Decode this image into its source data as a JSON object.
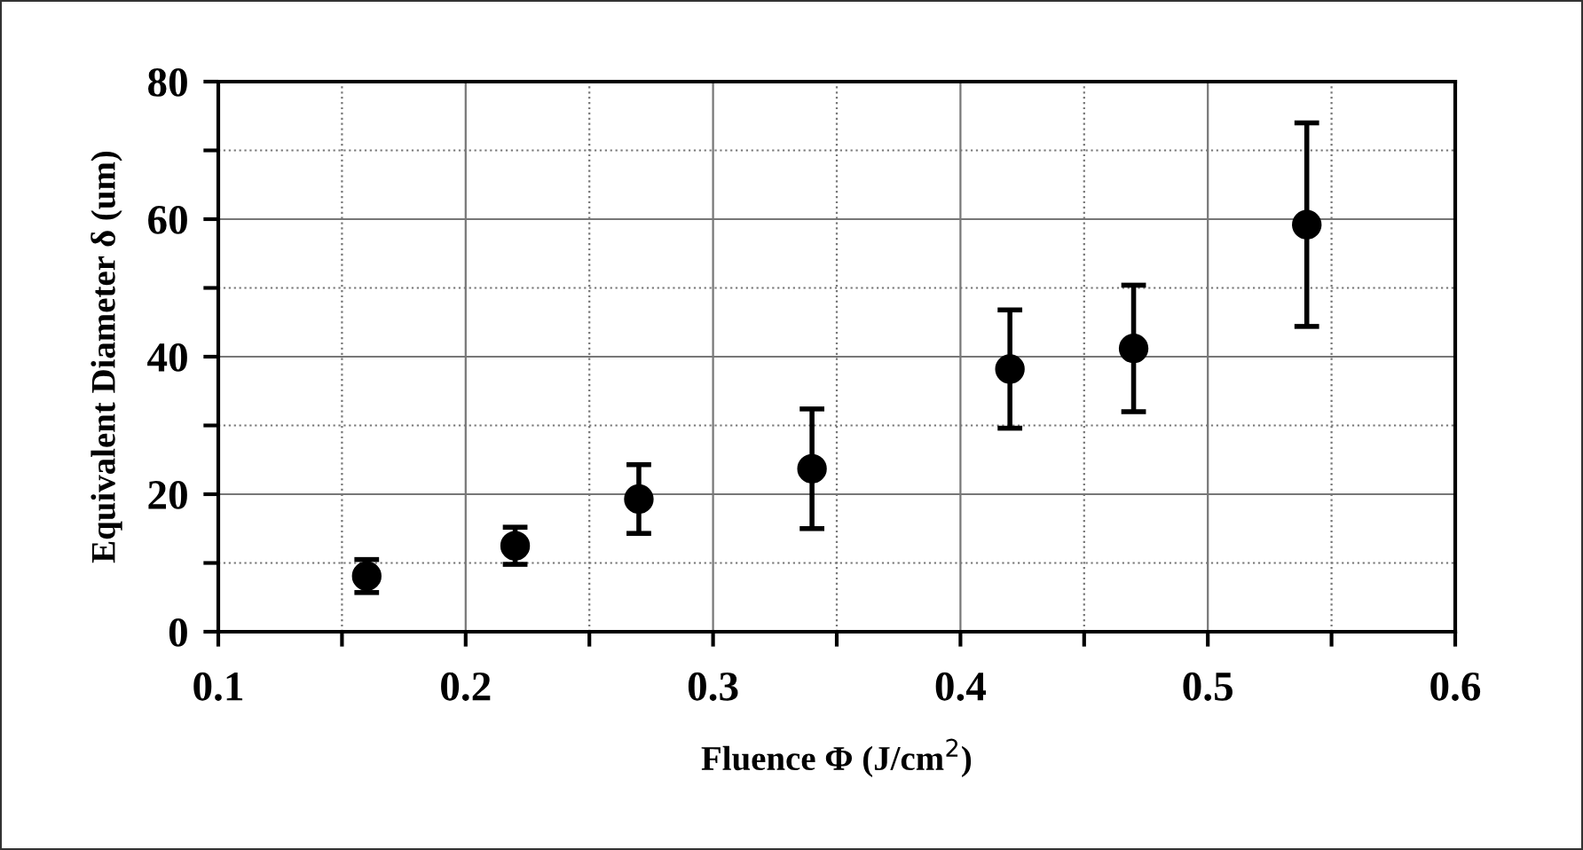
{
  "chart_data": {
    "type": "scatter",
    "xlabel": "Fluence Φ (J/cm$^{2}$)",
    "ylabel": "Equivalent Diameter δ (um)",
    "x": [
      0.16,
      0.22,
      0.27,
      0.34,
      0.42,
      0.47,
      0.54
    ],
    "values": [
      8.1,
      12.5,
      19.3,
      23.7,
      38.2,
      41.2,
      59.2
    ],
    "errors": [
      2.4,
      2.7,
      5.0,
      8.7,
      8.6,
      9.2,
      14.8
    ],
    "color": "#000000",
    "marker": "circle",
    "xlim": [
      0.1,
      0.6
    ],
    "ylim": [
      0,
      80
    ],
    "xticks": [
      0.1,
      {
        "value": 0.15,
        "label": null
      },
      0.2,
      {
        "value": 0.25,
        "label": null
      },
      0.3,
      {
        "value": 0.35,
        "label": null
      },
      0.4,
      {
        "value": 0.45,
        "label": null
      },
      0.5,
      {
        "value": 0.55,
        "label": null
      },
      0.6
    ],
    "yticks": [
      0,
      {
        "value": 10,
        "label": null
      },
      20,
      {
        "value": 30,
        "label": null
      },
      40,
      {
        "value": 50,
        "label": null
      },
      60,
      {
        "value": 70,
        "label": null
      },
      80
    ],
    "grid": true
  }
}
